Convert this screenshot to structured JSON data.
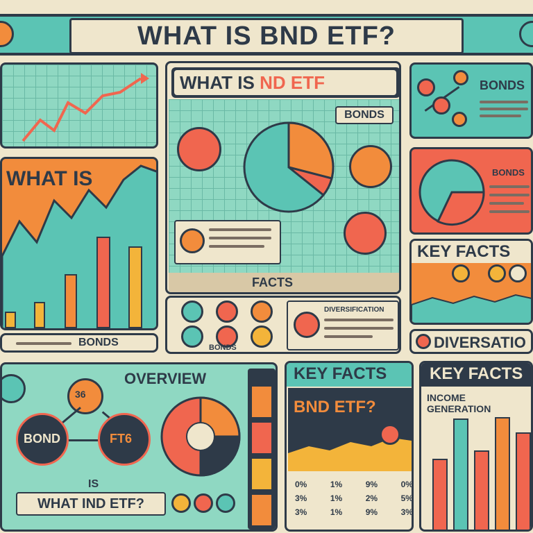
{
  "header": {
    "title": "WHAT IS BND ETF?"
  },
  "panels": {
    "center_top_title": "WHAT IS",
    "center_top_title_accent": "ND ETF",
    "bonds_tag": "BONDS",
    "facts_strip": "FACTS",
    "diversity_label": "DIVERSIFICATION",
    "bonds_bottom": "BONDS",
    "left_what_is": "WHAT IS",
    "left_bottom_bonds": "BONDS",
    "right_bonds_top": "BONDS",
    "right_bonds_mid": "BONDS",
    "right_key_facts": "KEY FACTS",
    "right_diversification": "DIVERSATIO",
    "overview_title": "OVERVIEW",
    "overview_bond": "BOND",
    "overview_etf": "FT6",
    "overview_center": "36",
    "overview_is": "IS",
    "overview_what": "WHAT IND ETF?",
    "key_facts_mid": "KEY FACTS",
    "bnd_etf": "BND ETF?",
    "key_facts_right": "KEY FACTS",
    "income_generation": "INCOME GENERATION",
    "pct_row1": [
      "0%",
      "1%",
      "9%",
      "0%"
    ],
    "pct_row2": [
      "3%",
      "1%",
      "2%",
      "5%"
    ],
    "pct_row3": [
      "3%",
      "1%",
      "9%",
      "3%"
    ]
  },
  "colors": {
    "teal": "#5bc4b4",
    "orange": "#f28c3c",
    "coral": "#f0664f",
    "navy": "#2e3a48",
    "cream": "#efe6cc",
    "yellow": "#f3b43a"
  }
}
